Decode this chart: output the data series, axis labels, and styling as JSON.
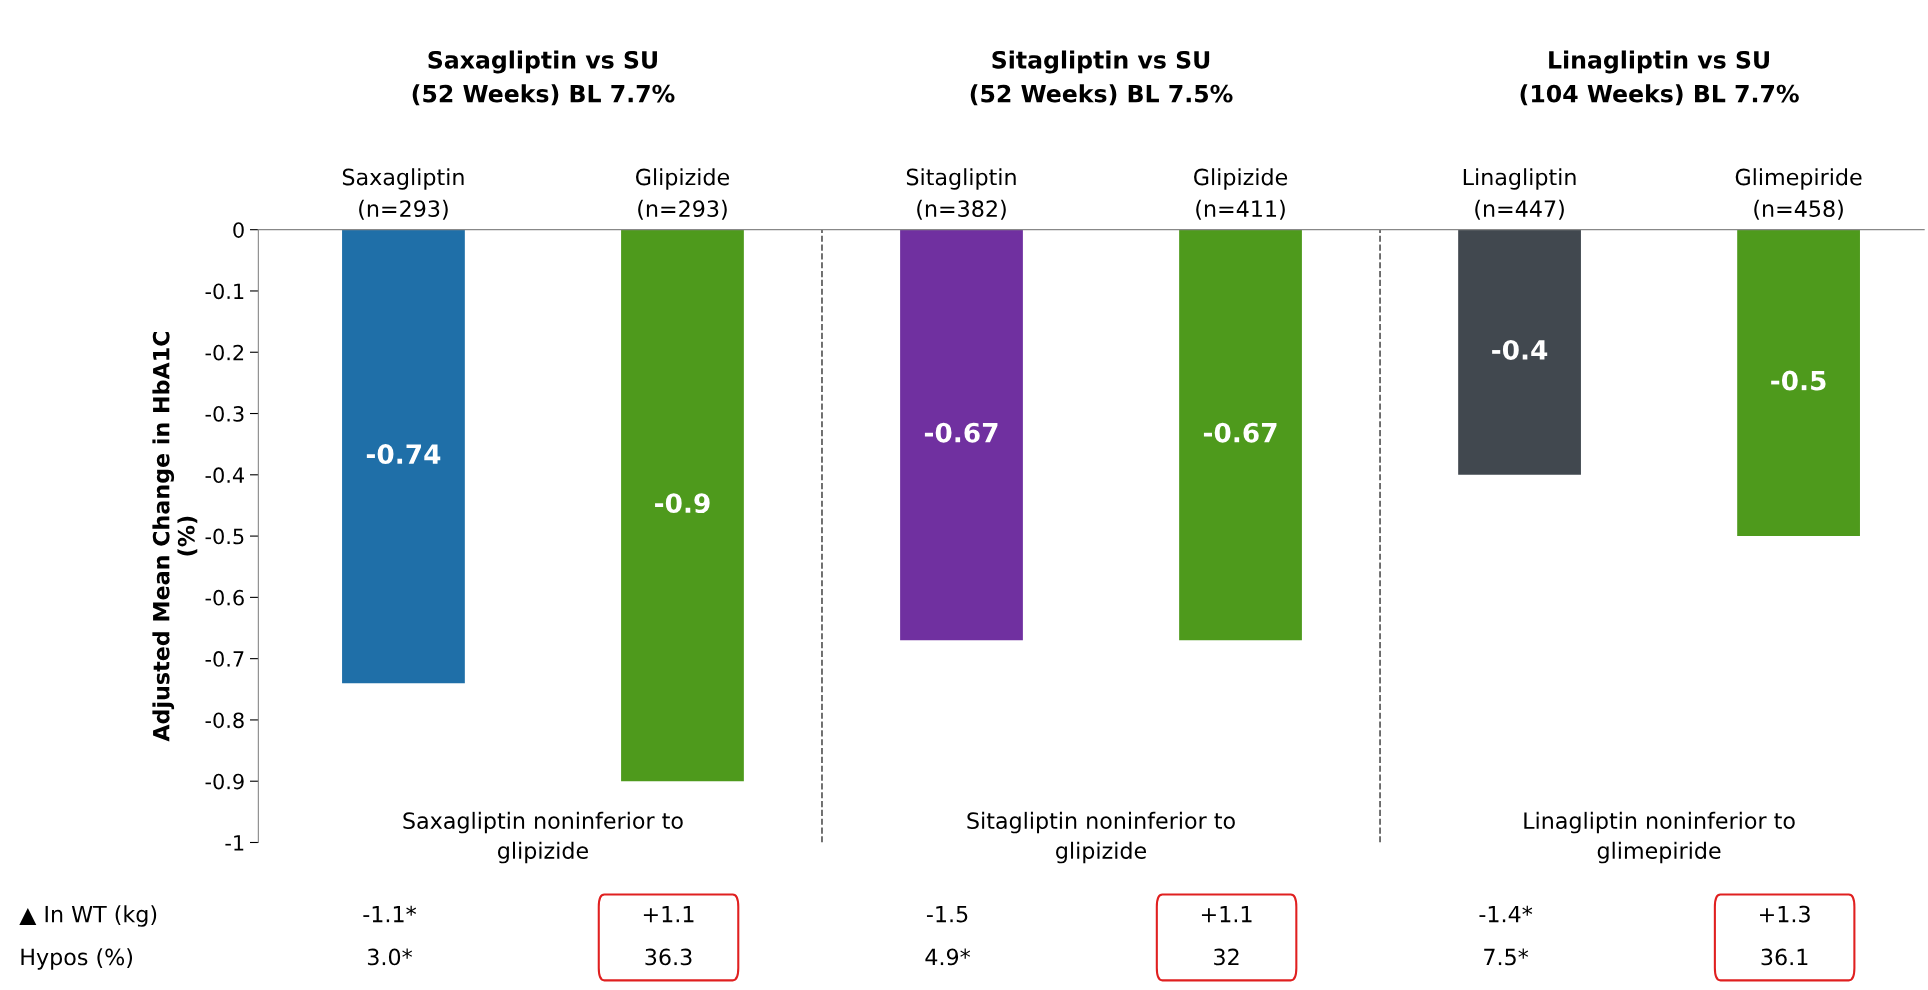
{
  "chart_data": {
    "type": "bar",
    "categories": [
      "Saxagliptin\n(n=293)",
      "Glipizide\n(n=293)",
      "Sitagliptin\n(n=382)",
      "Glipizide\n(n=411)",
      "Linagliptin\n(n=447)",
      "Glimepiride\n(n=458)"
    ],
    "values": [
      -0.74,
      -0.9,
      -0.67,
      -0.67,
      -0.4,
      -0.5
    ],
    "colors": [
      "#1f6fa8",
      "#4e9a1c",
      "#7030a0",
      "#4e9a1c",
      "#41484f",
      "#4e9a1c"
    ],
    "data_labels": true,
    "ylabel": "Adjusted Mean Change in HbA1C\n(%)",
    "ylim": [
      -1,
      0
    ],
    "yticks": [
      0,
      -0.1,
      -0.2,
      -0.3,
      -0.4,
      -0.5,
      -0.6,
      -0.7,
      -0.8,
      -0.9,
      -1
    ],
    "grid": false,
    "annotations": [
      "Saxagliptin vs SU\n(52 Weeks) BL 7.7%",
      "Sitagliptin vs SU\n(52 Weeks) BL 7.5%",
      "Linagliptin vs SU\n(104 Weeks) BL 7.7%",
      "Saxagliptin noninferior to\nglipizide",
      "Sitagliptin noninferior to\nglipizide",
      "Linagliptin noninferior to\nglimepiride",
      "▲ In WT (kg)",
      "Hypos (%)",
      "-1.1*",
      "+1.1",
      "-1.5",
      "+1.1",
      "-1.4*",
      "+1.3",
      "3.0*",
      "36.3",
      "4.9*",
      "32",
      "7.5*",
      "36.1"
    ]
  }
}
